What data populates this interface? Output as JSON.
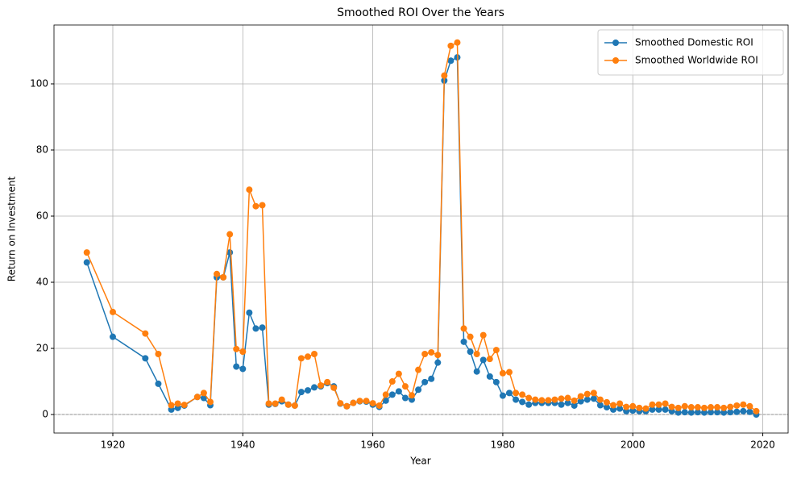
{
  "chart_data": {
    "type": "line",
    "title": "Smoothed ROI Over the Years",
    "x_label": "Year",
    "y_label": "Return on Investment",
    "x": [
      1916,
      1920,
      1925,
      1927,
      1929,
      1930,
      1931,
      1933,
      1934,
      1935,
      1936,
      1937,
      1938,
      1939,
      1940,
      1941,
      1942,
      1943,
      1944,
      1945,
      1946,
      1947,
      1948,
      1949,
      1950,
      1951,
      1952,
      1953,
      1954,
      1955,
      1956,
      1957,
      1958,
      1959,
      1960,
      1961,
      1962,
      1963,
      1964,
      1965,
      1966,
      1967,
      1968,
      1969,
      1970,
      1971,
      1972,
      1973,
      1974,
      1975,
      1976,
      1977,
      1978,
      1979,
      1980,
      1981,
      1982,
      1983,
      1984,
      1985,
      1986,
      1987,
      1988,
      1989,
      1990,
      1991,
      1992,
      1993,
      1994,
      1995,
      1996,
      1997,
      1998,
      1999,
      2000,
      2001,
      2002,
      2003,
      2004,
      2005,
      2006,
      2007,
      2008,
      2009,
      2010,
      2011,
      2012,
      2013,
      2014,
      2015,
      2016,
      2017,
      2018,
      2019
    ],
    "series": [
      {
        "name": "Smoothed Domestic ROI",
        "color": "#1f77b4",
        "values": [
          46,
          23.5,
          17,
          9.3,
          1.5,
          2,
          2.7,
          5.3,
          5,
          2.8,
          41.5,
          41.5,
          49,
          14.5,
          13.8,
          30.8,
          26,
          26.3,
          3,
          3.2,
          4,
          3,
          2.7,
          6.8,
          7.3,
          8.2,
          8.5,
          9.5,
          8.5,
          3.3,
          2.5,
          3.5,
          4,
          3.9,
          3,
          2.3,
          4.2,
          6,
          7,
          5,
          4.5,
          7.5,
          9.8,
          10.8,
          15.7,
          101,
          107,
          108,
          22,
          19,
          13,
          16.5,
          11.5,
          9.8,
          5.7,
          6.5,
          4.5,
          3.8,
          3,
          3.5,
          3.5,
          3.5,
          3.5,
          3,
          3.5,
          2.7,
          4,
          4.5,
          4.8,
          2.8,
          2.2,
          1.5,
          1.8,
          1,
          1.2,
          1,
          1,
          1.5,
          1.5,
          1.5,
          1,
          0.6,
          0.7,
          0.6,
          0.7,
          0.6,
          0.7,
          0.7,
          0.6,
          0.7,
          0.8,
          1,
          0.8,
          0
        ]
      },
      {
        "name": "Smoothed Worldwide ROI",
        "color": "#ff7f0e",
        "values": [
          49,
          31,
          24.5,
          18.3,
          2.8,
          3.3,
          2.9,
          5.3,
          6.5,
          3.8,
          42.5,
          41.5,
          54.5,
          19.8,
          19,
          68,
          63,
          63.3,
          3.3,
          3.3,
          4.5,
          3,
          2.7,
          17,
          17.5,
          18.3,
          8.8,
          9.8,
          8.1,
          3.4,
          2.5,
          3.5,
          4.1,
          4.1,
          3.4,
          2.7,
          6,
          10,
          12.3,
          8.5,
          5.8,
          13.5,
          18.3,
          18.8,
          18,
          102.5,
          111.5,
          112.5,
          26,
          23.5,
          18.3,
          24,
          16.8,
          19.5,
          12.5,
          12.8,
          6.5,
          6,
          5,
          4.5,
          4.3,
          4.3,
          4.5,
          4.8,
          5,
          4.2,
          5.5,
          6.2,
          6.5,
          4.5,
          3.7,
          2.8,
          3.3,
          2.3,
          2.5,
          2,
          1.8,
          3,
          3,
          3.3,
          2.3,
          2,
          2.5,
          2.2,
          2.2,
          2,
          2.2,
          2.2,
          2,
          2.3,
          2.7,
          3,
          2.5,
          1
        ]
      }
    ],
    "xlim": [
      1910.95,
      2023.9
    ],
    "ylim": [
      -5.6,
      117.8
    ],
    "xticks": [
      1920,
      1940,
      1960,
      1980,
      2000,
      2020
    ],
    "yticks": [
      0,
      20,
      40,
      60,
      80,
      100
    ],
    "grid": true,
    "reference_line": 0,
    "legend": "upper right"
  }
}
